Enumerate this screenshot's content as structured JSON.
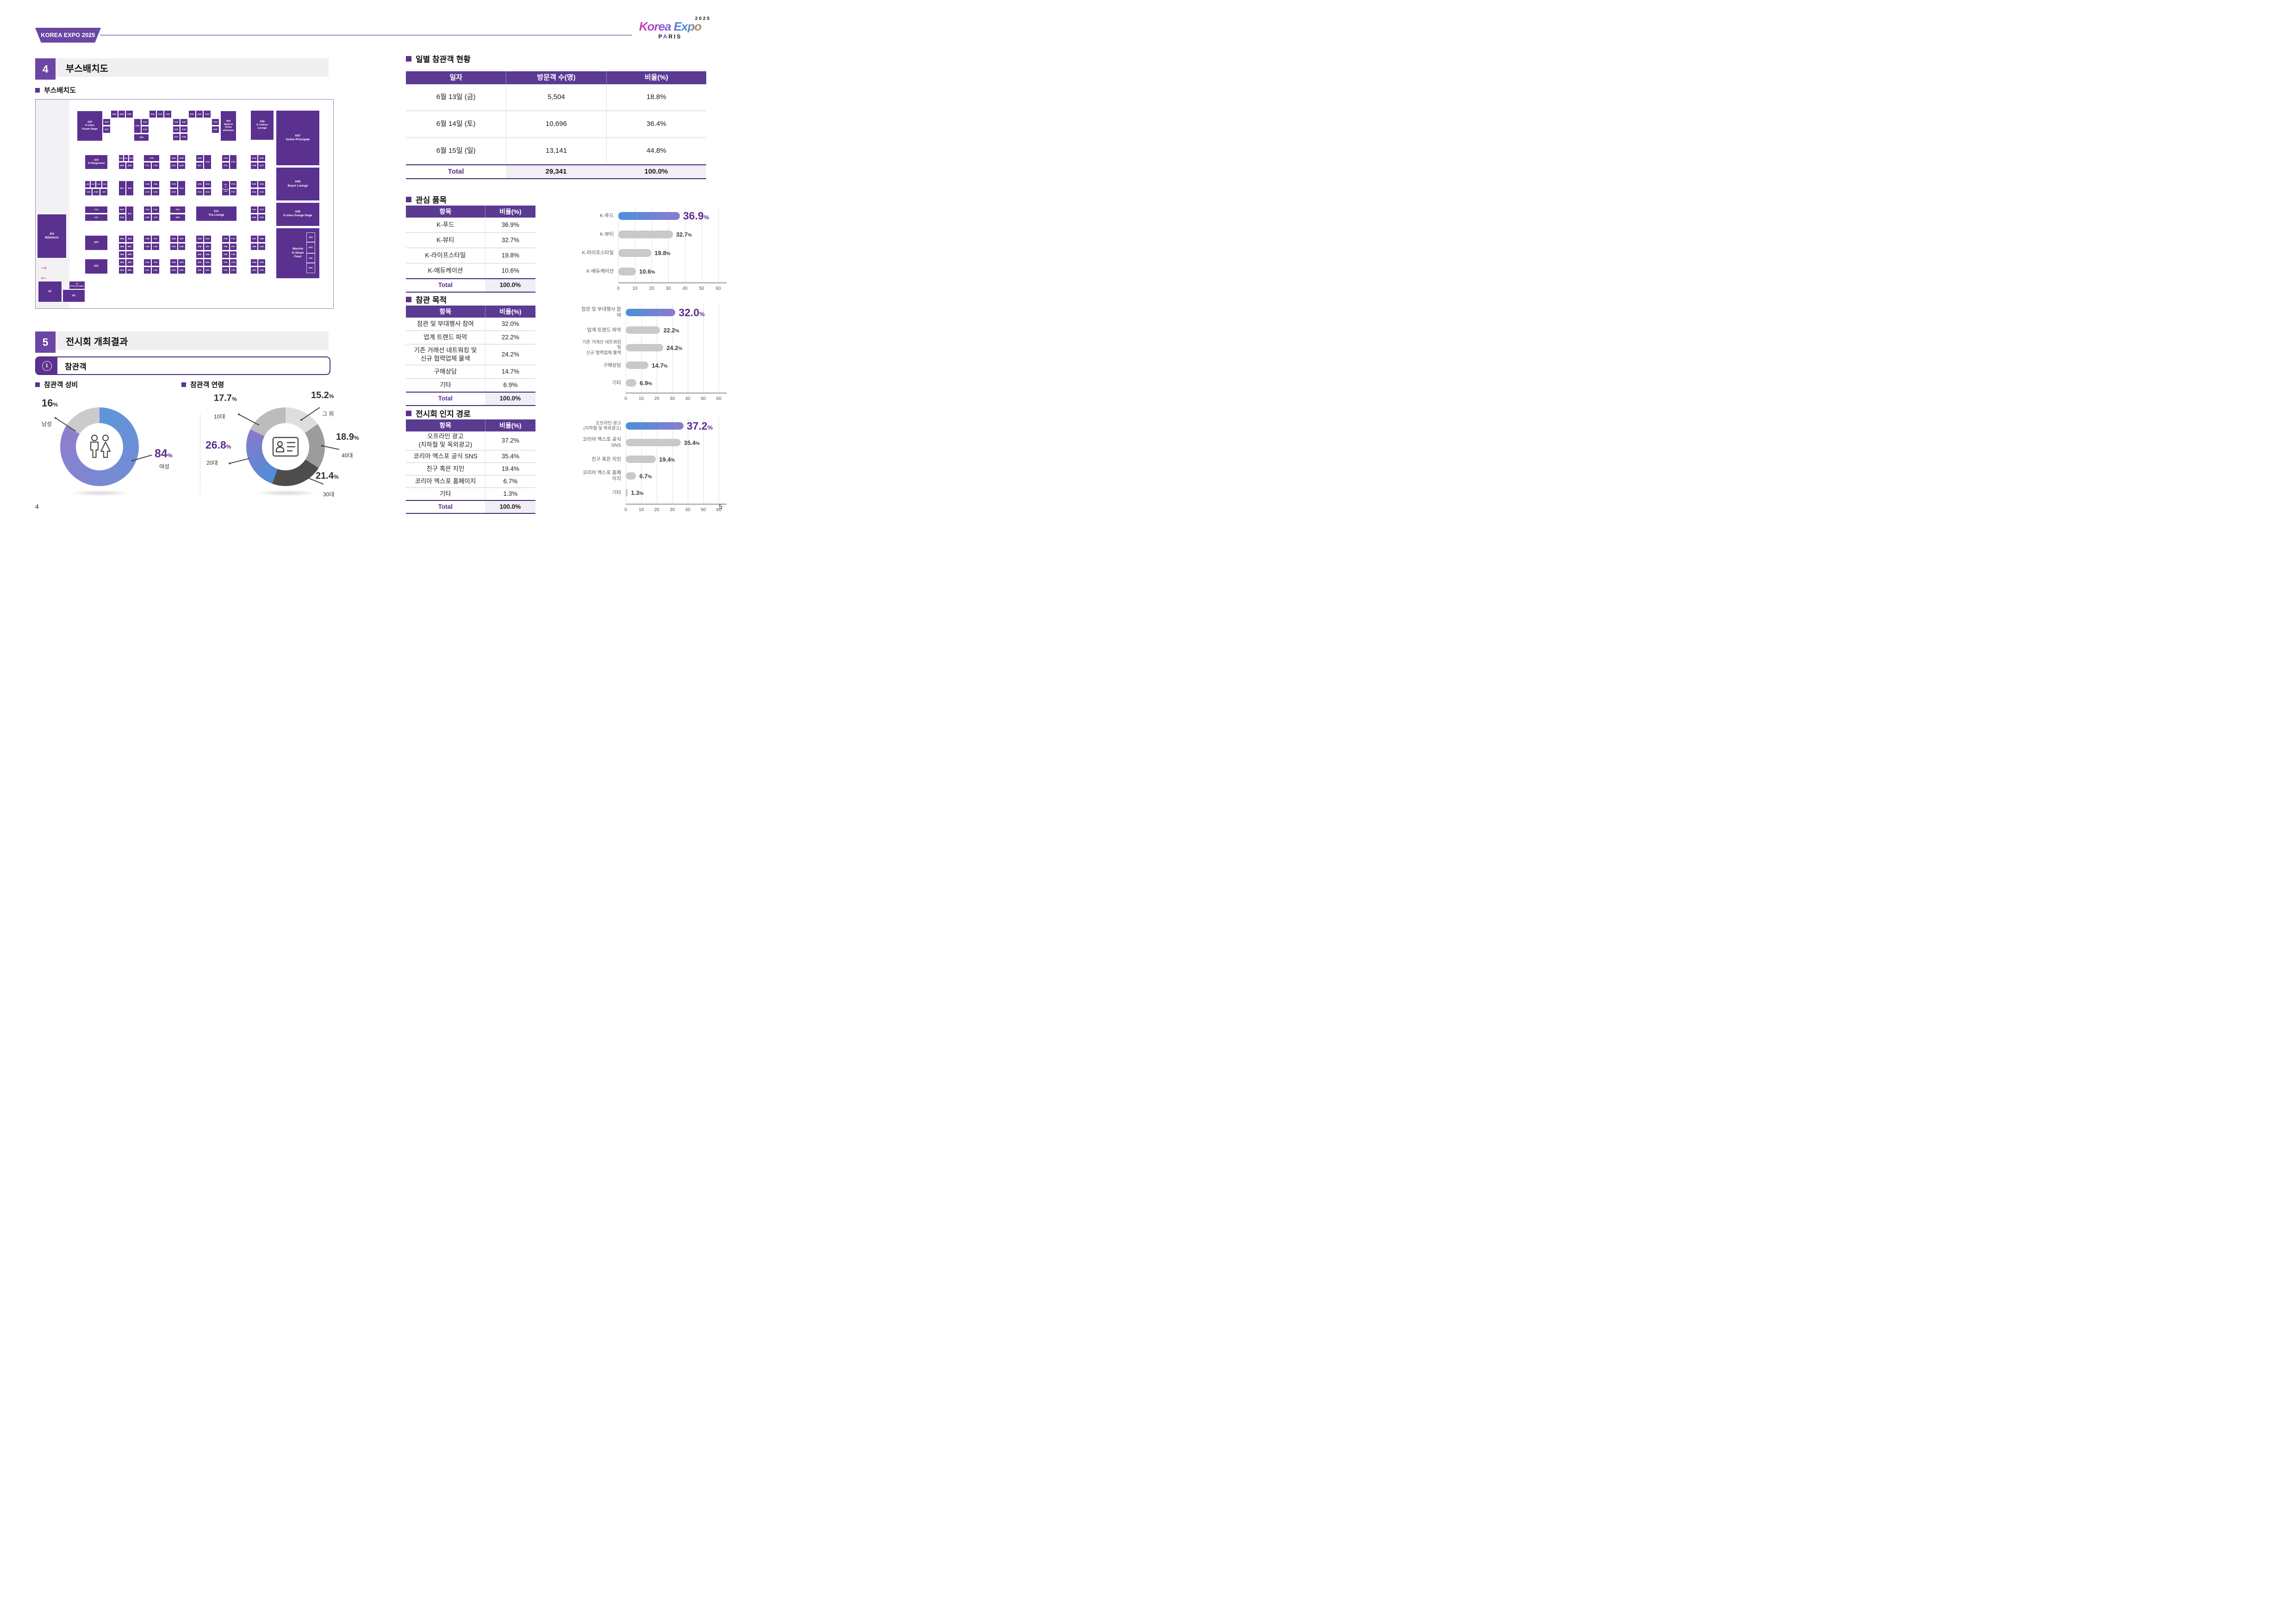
{
  "meta": {
    "left_page": "4",
    "right_page": "5"
  },
  "header": {
    "ribbon": "KOREA EXPO 2025",
    "logo_script": "Korea Expo",
    "logo_year": "2025",
    "logo_city_pre": "P",
    "logo_city_a": "A",
    "logo_city_post": "RIS"
  },
  "left": {
    "sec4_num": "4",
    "sec4_title": "부스배치도",
    "sec4_sub": "부스배치도",
    "sec5_num": "5",
    "sec5_title": "전시회 개최결과",
    "circle_num": "1",
    "circle_title": "참관객",
    "gender_title": "참관객 성비",
    "age_title": "참관객 연령"
  },
  "map": {
    "arrow_right": "→",
    "arrow_left": "←",
    "booths": [
      [
        "K03",
        162,
        23,
        16,
        17
      ],
      [
        "K04",
        178,
        23,
        16,
        17
      ],
      [
        "K05",
        194,
        23,
        17,
        17
      ],
      [
        "K12",
        245,
        23,
        16,
        17
      ],
      [
        "K13",
        261,
        23,
        16,
        17
      ],
      [
        "K14",
        277,
        23,
        17,
        17
      ],
      [
        "K21",
        330,
        23,
        16,
        17
      ],
      [
        "K22",
        346,
        23,
        16,
        17
      ],
      [
        "K23",
        362,
        23,
        17,
        17
      ],
      [
        "A29\nK-class\nPurple Stage",
        89,
        24,
        56,
        66,
        5.5
      ],
      [
        "K02",
        145,
        41,
        17,
        15
      ],
      [
        "K01",
        145,
        57,
        17,
        16
      ],
      [
        "K06",
        212,
        41,
        16,
        32
      ],
      [
        "K11",
        228,
        41,
        17,
        15
      ],
      [
        "K10",
        228,
        57,
        17,
        16
      ],
      [
        "K08",
        212,
        74,
        33,
        16
      ],
      [
        "K15",
        296,
        41,
        16,
        15
      ],
      [
        "K20",
        312,
        41,
        17,
        15
      ],
      [
        "K16",
        296,
        57,
        16,
        15
      ],
      [
        "K19",
        312,
        57,
        17,
        15
      ],
      [
        "K17",
        296,
        73,
        16,
        16
      ],
      [
        "K18",
        312,
        73,
        17,
        16
      ],
      [
        "K24",
        380,
        41,
        17,
        15
      ],
      [
        "K25",
        380,
        57,
        17,
        16
      ],
      [
        "H09\nStudy in\nKorea\nshowcase",
        399,
        24,
        35,
        66,
        5
      ],
      [
        "H08\nK Culture\nLounge",
        464,
        23,
        51,
        65,
        5.5
      ],
      [
        "H07\nScène Principale",
        519,
        23,
        95,
        120,
        6.5
      ],
      [
        "H06\nBuyer Lounge",
        519,
        146,
        95,
        73,
        6.5
      ],
      [
        "H05\nK-class Orange Stage",
        519,
        222,
        95,
        52,
        6
      ],
      [
        "Marché\nK-Street\nFood",
        519,
        277,
        95,
        110,
        6.5
      ],
      [
        "H04",
        585,
        287,
        19,
        21,
        4.6,
        "o"
      ],
      [
        "H03",
        585,
        308,
        19,
        24,
        4.6,
        "o"
      ],
      [
        "H02",
        585,
        332,
        19,
        21,
        4.6,
        "o"
      ],
      [
        "H01",
        585,
        353,
        19,
        22,
        4.6,
        "o"
      ],
      [
        "A24\nK-Playground",
        106,
        119,
        50,
        32,
        5.5
      ],
      [
        "B21",
        179,
        119,
        11,
        15,
        4
      ],
      [
        "B22",
        190,
        119,
        11,
        15,
        4
      ],
      [
        "B23",
        201,
        119,
        11,
        15,
        4
      ],
      [
        "B20",
        179,
        135,
        16,
        16
      ],
      [
        "B19",
        195,
        135,
        17,
        16
      ],
      [
        "C19",
        233,
        119,
        35,
        15
      ],
      [
        "C17",
        233,
        135,
        17,
        16
      ],
      [
        "C18",
        250,
        135,
        18,
        16
      ],
      [
        "D20",
        290,
        119,
        17,
        15
      ],
      [
        "D19",
        307,
        119,
        17,
        15
      ],
      [
        "D17",
        290,
        135,
        17,
        16
      ],
      [
        "D18",
        307,
        135,
        17,
        16
      ],
      [
        "E20",
        346,
        119,
        17,
        15
      ],
      [
        "E18",
        363,
        119,
        17,
        32
      ],
      [
        "E17",
        346,
        135,
        17,
        16
      ],
      [
        "F18",
        402,
        119,
        17,
        15
      ],
      [
        "F16",
        419,
        119,
        16,
        32
      ],
      [
        "F15",
        402,
        135,
        17,
        16
      ],
      [
        "G19",
        464,
        119,
        16,
        15
      ],
      [
        "G20",
        480,
        119,
        17,
        15
      ],
      [
        "G18",
        464,
        135,
        16,
        16
      ],
      [
        "G17",
        480,
        135,
        17,
        16
      ],
      [
        "A20",
        106,
        175,
        12,
        16,
        4
      ],
      [
        "A21",
        118,
        175,
        12,
        16,
        4
      ],
      [
        "A22",
        130,
        175,
        13,
        16,
        4
      ],
      [
        "A23",
        143,
        175,
        13,
        16,
        4
      ],
      [
        "A19",
        106,
        192,
        16,
        16
      ],
      [
        "A18",
        122,
        192,
        17,
        16
      ],
      [
        "A17",
        139,
        192,
        17,
        16
      ],
      [
        "B17",
        179,
        175,
        16,
        33
      ],
      [
        "B15",
        195,
        175,
        17,
        33
      ],
      [
        "C16",
        233,
        175,
        17,
        16
      ],
      [
        "C15",
        250,
        175,
        18,
        16
      ],
      [
        "C13",
        233,
        192,
        17,
        16
      ],
      [
        "C14",
        250,
        192,
        18,
        16
      ],
      [
        "D13",
        290,
        175,
        17,
        16
      ],
      [
        "D14",
        307,
        175,
        17,
        33
      ],
      [
        "D12",
        290,
        192,
        17,
        16
      ],
      [
        "E16",
        346,
        175,
        17,
        16
      ],
      [
        "E15",
        363,
        175,
        17,
        16
      ],
      [
        "E13",
        346,
        192,
        17,
        16
      ],
      [
        "E14",
        363,
        192,
        17,
        16
      ],
      [
        "F11\nK\nBeauty\nLab",
        402,
        175,
        17,
        33,
        3.8
      ],
      [
        "F13",
        419,
        175,
        16,
        16
      ],
      [
        "F12",
        419,
        192,
        16,
        16
      ],
      [
        "G15",
        464,
        175,
        16,
        16
      ],
      [
        "G16",
        480,
        175,
        17,
        16
      ],
      [
        "G14",
        464,
        192,
        16,
        16
      ],
      [
        "G13",
        480,
        192,
        17,
        16
      ],
      [
        "A14",
        106,
        230,
        50,
        16
      ],
      [
        "A11",
        106,
        247,
        50,
        16
      ],
      [
        "B13",
        179,
        230,
        16,
        16
      ],
      [
        "B11",
        195,
        230,
        17,
        33
      ],
      [
        "B12",
        179,
        247,
        16,
        16
      ],
      [
        "C12",
        233,
        230,
        17,
        16
      ],
      [
        "C11",
        250,
        230,
        18,
        16
      ],
      [
        "C09",
        233,
        247,
        17,
        16
      ],
      [
        "C10",
        250,
        247,
        18,
        16
      ],
      [
        "D11",
        290,
        230,
        34,
        16
      ],
      [
        "D09",
        290,
        247,
        34,
        16
      ],
      [
        "E11\nThe Lounge",
        346,
        230,
        89,
        33,
        6
      ],
      [
        "G11",
        464,
        230,
        16,
        16
      ],
      [
        "G12",
        480,
        230,
        17,
        16
      ],
      [
        "G10",
        464,
        247,
        16,
        16
      ],
      [
        "G09",
        480,
        247,
        17,
        16
      ],
      [
        "A07",
        106,
        293,
        50,
        33,
        5.5
      ],
      [
        "B09",
        179,
        293,
        16,
        16
      ],
      [
        "B10",
        195,
        293,
        17,
        16
      ],
      [
        "B08",
        179,
        310,
        16,
        16
      ],
      [
        "B07",
        195,
        310,
        17,
        16
      ],
      [
        "B05",
        179,
        327,
        16,
        16
      ],
      [
        "B06",
        195,
        327,
        17,
        16
      ],
      [
        "B04",
        179,
        344,
        16,
        16
      ],
      [
        "B03",
        195,
        344,
        17,
        16
      ],
      [
        "B01",
        179,
        361,
        16,
        16
      ],
      [
        "B02",
        195,
        361,
        17,
        16
      ],
      [
        "C08",
        233,
        293,
        17,
        16
      ],
      [
        "C07",
        250,
        293,
        18,
        16
      ],
      [
        "C05",
        233,
        310,
        17,
        16
      ],
      [
        "C06",
        250,
        310,
        18,
        16
      ],
      [
        "C04",
        233,
        344,
        17,
        16
      ],
      [
        "C03",
        250,
        344,
        18,
        16
      ],
      [
        "C01",
        233,
        361,
        17,
        16
      ],
      [
        "C02",
        250,
        361,
        18,
        16
      ],
      [
        "D08",
        290,
        293,
        17,
        16
      ],
      [
        "D07",
        307,
        293,
        17,
        16
      ],
      [
        "D05",
        290,
        310,
        17,
        16
      ],
      [
        "D06",
        307,
        310,
        17,
        16
      ],
      [
        "D04",
        290,
        344,
        17,
        16
      ],
      [
        "D03",
        307,
        344,
        17,
        16
      ],
      [
        "D01",
        290,
        361,
        17,
        16
      ],
      [
        "D02",
        307,
        361,
        17,
        16
      ],
      [
        "E09",
        346,
        293,
        17,
        16
      ],
      [
        "E10",
        363,
        293,
        17,
        16
      ],
      [
        "E08",
        346,
        310,
        17,
        16
      ],
      [
        "E07",
        363,
        310,
        17,
        16
      ],
      [
        "E05",
        346,
        327,
        17,
        16
      ],
      [
        "E06",
        363,
        327,
        17,
        16
      ],
      [
        "E04",
        346,
        344,
        17,
        16
      ],
      [
        "E03",
        363,
        344,
        17,
        16
      ],
      [
        "E01",
        346,
        361,
        17,
        16
      ],
      [
        "E02",
        363,
        361,
        17,
        16
      ],
      [
        "F09",
        402,
        293,
        17,
        16
      ],
      [
        "F10",
        419,
        293,
        16,
        16
      ],
      [
        "F08",
        402,
        310,
        17,
        16
      ],
      [
        "F07",
        419,
        310,
        16,
        16
      ],
      [
        "F05",
        402,
        327,
        17,
        16
      ],
      [
        "F06",
        419,
        327,
        16,
        16
      ],
      [
        "F04",
        402,
        344,
        17,
        16
      ],
      [
        "F03",
        419,
        344,
        16,
        16
      ],
      [
        "F01",
        402,
        361,
        17,
        16
      ],
      [
        "F02",
        419,
        361,
        16,
        16
      ],
      [
        "G07",
        464,
        293,
        16,
        16
      ],
      [
        "G08",
        480,
        293,
        17,
        16
      ],
      [
        "G05",
        464,
        310,
        16,
        16
      ],
      [
        "G06",
        480,
        310,
        17,
        16
      ],
      [
        "G04",
        464,
        344,
        16,
        16
      ],
      [
        "G03",
        480,
        344,
        17,
        16
      ],
      [
        "G01",
        464,
        361,
        16,
        16
      ],
      [
        "G02",
        480,
        361,
        17,
        16
      ],
      [
        "A01",
        106,
        344,
        50,
        33,
        5.5
      ],
      [
        "J01\nBilletterie",
        3,
        247,
        64,
        96,
        6.5
      ],
      [
        "I01",
        5,
        392,
        52,
        46,
        5
      ],
      [
        "I03\nPoint Information",
        72,
        392,
        35,
        18,
        3.6
      ],
      [
        "I02",
        58,
        410,
        49,
        28,
        5
      ]
    ]
  },
  "right": {
    "daily_title": "일별 참관객 현황",
    "daily_headers": [
      "일자",
      "방문객 수(명)",
      "비율(%)"
    ],
    "daily_rows": [
      [
        "6월 13일 (금)",
        "5,504",
        "18.8%"
      ],
      [
        "6월 14일 (토)",
        "10,696",
        "36.4%"
      ],
      [
        "6월 15일 (일)",
        "13,141",
        "44.8%"
      ]
    ],
    "daily_total": [
      "Total",
      "29,341",
      "100.0%"
    ],
    "interest_title": "관심 품목",
    "col_item": "항목",
    "col_pct": "비율(%)",
    "total_label": "Total",
    "total_value": "100.0%",
    "interest_rows": [
      [
        "K-푸드",
        "36.9%"
      ],
      [
        "K-뷰티",
        "32.7%"
      ],
      [
        "K-라이프스타일",
        "19.8%"
      ],
      [
        "K-에듀케이션",
        "10.6%"
      ]
    ],
    "purpose_title": "참관 목적",
    "purpose_rows": [
      [
        "참관 및 부대행사 참여",
        "32.0%"
      ],
      [
        "업계 트렌드 파악",
        "22.2%"
      ],
      [
        "기존 거래선 네트워킹 및\n신규 협력업체 물색",
        "24.2%"
      ],
      [
        "구매상담",
        "14.7%"
      ],
      [
        "기타",
        "6.9%"
      ]
    ],
    "aware_title": "전시회 인지 경로",
    "aware_rows": [
      [
        "오프라인 광고\n(지하철 및 옥외광고)",
        "37.2%"
      ],
      [
        "코리아 엑스포 공식 SNS",
        "35.4%"
      ],
      [
        "친구 혹은 지인",
        "19.4%"
      ],
      [
        "코리아 엑스포 홈페이지",
        "6.7%"
      ],
      [
        "기타",
        "1.3%"
      ]
    ]
  },
  "gender_callouts": {
    "male": {
      "num": "16",
      "unit": "%",
      "label": "남성"
    },
    "female": {
      "num": "84",
      "unit": "%",
      "label": "여성"
    }
  },
  "age_callouts": {
    "t10": {
      "num": "17.7",
      "unit": "%",
      "label": "10대"
    },
    "etc": {
      "num": "15.2",
      "unit": "%",
      "label": "그 외"
    },
    "t40": {
      "num": "18.9",
      "unit": "%",
      "label": "40대"
    },
    "t30": {
      "num": "21.4",
      "unit": "%",
      "label": "30대"
    },
    "t20": {
      "num": "26.8",
      "unit": "%",
      "label": "20대"
    }
  },
  "chart_data": [
    {
      "id": "gender",
      "type": "pie",
      "title": "참관객 성비",
      "donut": true,
      "slices": [
        {
          "label": "여성",
          "value": 84,
          "color": [
            "#5e96db",
            "#8e7fcd"
          ]
        },
        {
          "label": "남성",
          "value": 16,
          "color": "#cbcbce"
        }
      ],
      "start_angle_deg": 0,
      "direction": "clockwise"
    },
    {
      "id": "age",
      "type": "pie",
      "title": "참관객 연령",
      "donut": true,
      "slices": [
        {
          "label": "그 외",
          "value": 15.2,
          "color": "#dedede"
        },
        {
          "label": "40대",
          "value": 18.9,
          "color": "#9c9c9c"
        },
        {
          "label": "30대",
          "value": 21.4,
          "color": "#4d4d4d"
        },
        {
          "label": "20대",
          "value": 26.8,
          "color": [
            "#4f8ed6",
            "#8579cb"
          ]
        },
        {
          "label": "10대",
          "value": 17.7,
          "color": "#bcbcbc"
        }
      ],
      "start_angle_deg": 0,
      "direction": "clockwise"
    },
    {
      "id": "interest",
      "type": "bar",
      "title": "관심 품목",
      "orientation": "horizontal",
      "categories": [
        "K-푸드",
        "K-뷰티",
        "K-라이프스타일",
        "K-에듀케이션"
      ],
      "values": [
        36.9,
        32.7,
        19.8,
        10.6
      ],
      "highlight_index": 0,
      "xlim": [
        0,
        65
      ],
      "ticks": [
        0,
        10,
        20,
        30,
        40,
        50,
        60
      ],
      "value_suffix": "%",
      "bar_color": "#c9c9c9",
      "highlight_color": [
        "#4a90d9",
        "#8a7bce"
      ],
      "grid": true
    },
    {
      "id": "purpose",
      "type": "bar",
      "title": "참관 목적",
      "orientation": "horizontal",
      "categories": [
        "참관 및 부대행사 참여",
        "업계 트렌드 파악",
        "기존 거래선 네트워킹 및\n신규 협력업체 물색",
        "구매상담",
        "기타"
      ],
      "values": [
        32.0,
        22.2,
        24.2,
        14.7,
        6.9
      ],
      "highlight_index": 0,
      "xlim": [
        0,
        65
      ],
      "ticks": [
        0,
        10,
        20,
        30,
        40,
        50,
        60
      ],
      "value_suffix": "%",
      "bar_color": "#c9c9c9",
      "highlight_color": [
        "#4a90d9",
        "#8a7bce"
      ],
      "grid": true
    },
    {
      "id": "awareness",
      "type": "bar",
      "title": "전시회 인지 경로",
      "orientation": "horizontal",
      "categories": [
        "오프라인 광고\n(지하철 및 옥외광고)",
        "코리아 엑스포 공식 SNS",
        "친구 혹은 지인",
        "코리아 엑스포 홈페이지",
        "기타"
      ],
      "values": [
        37.2,
        35.4,
        19.4,
        6.7,
        1.3
      ],
      "highlight_index": 0,
      "xlim": [
        0,
        65
      ],
      "ticks": [
        0,
        10,
        20,
        30,
        40,
        50,
        60
      ],
      "value_suffix": "%",
      "bar_color": "#c9c9c9",
      "highlight_color": [
        "#4a90d9",
        "#8a7bce"
      ],
      "grid": true
    }
  ]
}
